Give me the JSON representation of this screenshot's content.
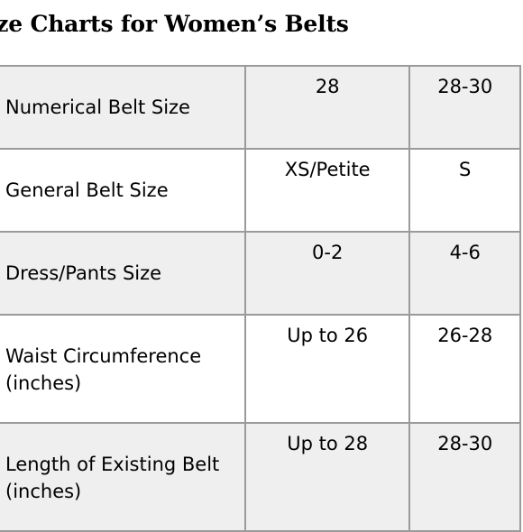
{
  "title": "ize Charts for Women’s Belts",
  "table": {
    "rows": [
      {
        "label_lines": [
          "Numerical Belt Size"
        ],
        "values": [
          "28",
          "28-30"
        ]
      },
      {
        "label_lines": [
          "General Belt Size"
        ],
        "values": [
          "XS/Petite",
          "S"
        ]
      },
      {
        "label_lines": [
          "Dress/Pants Size"
        ],
        "values": [
          "0-2",
          "4-6"
        ]
      },
      {
        "label_lines": [
          "Waist Circumference",
          "(inches)"
        ],
        "values": [
          "Up to 26",
          "26-28"
        ]
      },
      {
        "label_lines": [
          "Length of Existing Belt",
          "(inches)"
        ],
        "values": [
          "Up to 28",
          "28-30"
        ]
      }
    ]
  },
  "colors": {
    "row_shaded": "#efefef",
    "row_plain": "#ffffff",
    "border": "#9a9a9a"
  }
}
